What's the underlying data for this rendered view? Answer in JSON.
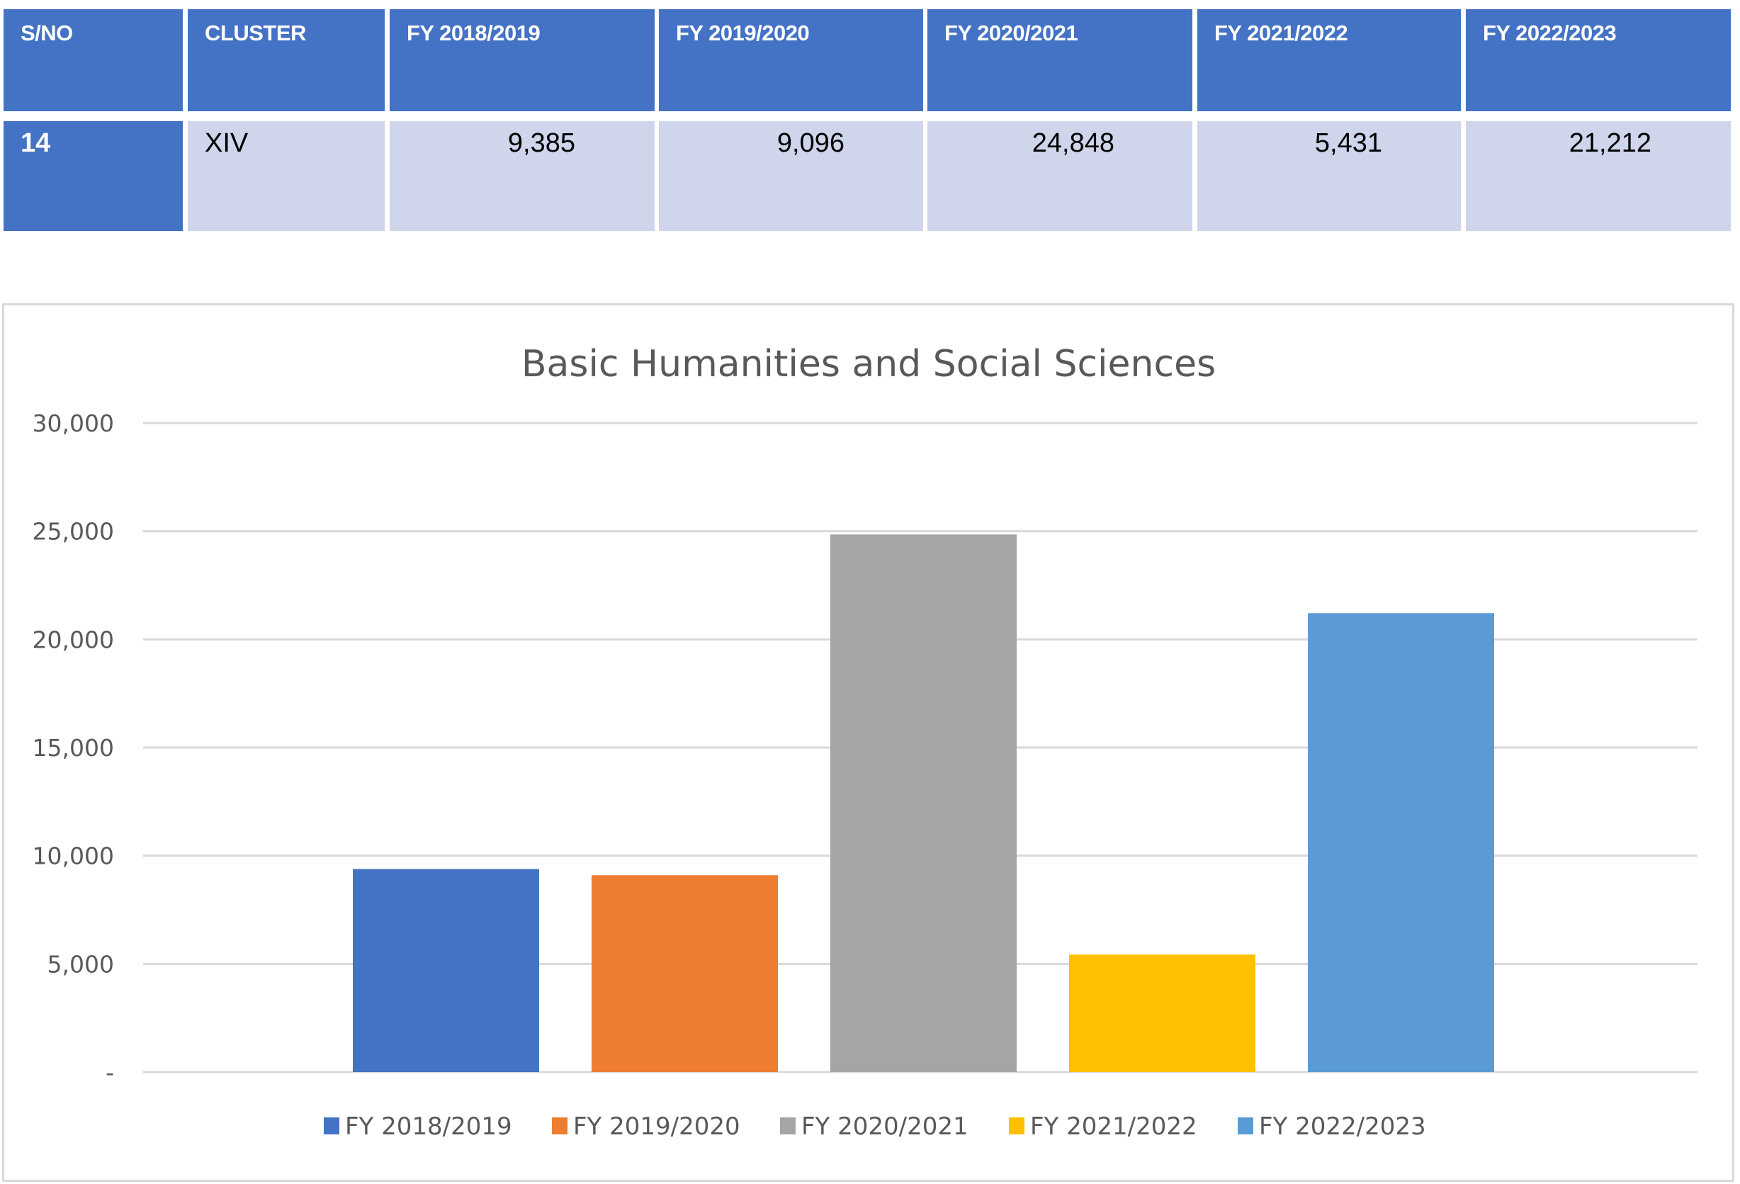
{
  "table": {
    "headers": [
      "S/NO",
      "CLUSTER",
      "FY 2018/2019",
      "FY 2019/2020",
      "FY 2020/2021",
      "FY 2021/2022",
      "FY 2022/2023"
    ],
    "row": {
      "sno": "14",
      "cluster": "XIV",
      "values": [
        "9,385",
        "9,096",
        "24,848",
        "5,431",
        "21,212"
      ]
    },
    "colors": {
      "header_bg": "#4472c4",
      "row_bg": "#cfd5ea"
    }
  },
  "chart_data": {
    "type": "bar",
    "title": "Basic Humanities and Social Sciences",
    "xlabel": "",
    "ylabel": "",
    "ylim": [
      0,
      30000
    ],
    "yticks": [
      0,
      5000,
      10000,
      15000,
      20000,
      25000,
      30000
    ],
    "ytick_labels": [
      "-",
      "5,000",
      "10,000",
      "15,000",
      "20,000",
      "25,000",
      "30,000"
    ],
    "grid": true,
    "legend_position": "bottom",
    "series": [
      {
        "name": "FY 2018/2019",
        "value": 9385,
        "color": "#4472c4"
      },
      {
        "name": "FY 2019/2020",
        "value": 9096,
        "color": "#ed7d31"
      },
      {
        "name": "FY 2020/2021",
        "value": 24848,
        "color": "#a5a5a5"
      },
      {
        "name": "FY 2021/2022",
        "value": 5431,
        "color": "#ffc000"
      },
      {
        "name": "FY 2022/2023",
        "value": 21212,
        "color": "#5b9bd5"
      }
    ]
  }
}
